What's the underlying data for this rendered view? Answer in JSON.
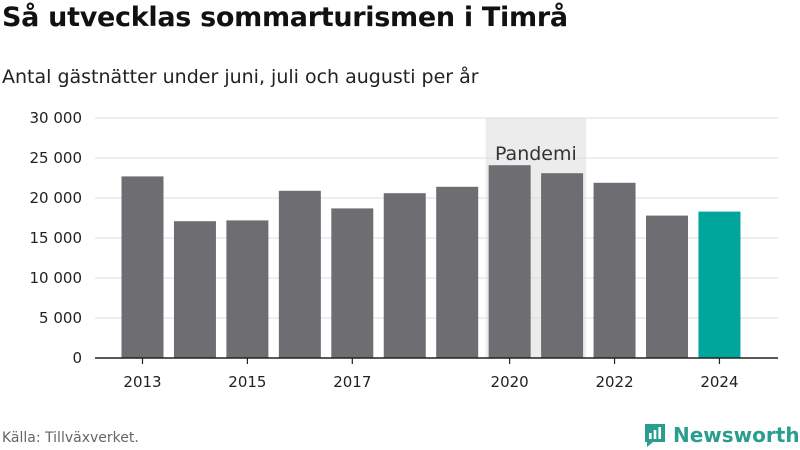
{
  "header": {
    "title": "Så utvecklas sommarturismen i Timrå",
    "subtitle": "Antal gästnätter under juni, juli och augusti per år"
  },
  "footer": {
    "source": "Källa: Tillväxverket.",
    "brand": "Newsworthy",
    "brand_icon": "newsworthy-logo-icon"
  },
  "colors": {
    "bar": "#6e6d71",
    "highlight": "#00a59b",
    "shade": "#ececec",
    "grid": "#dcdcdc",
    "brand": "#2a9d8f"
  },
  "chart_data": {
    "type": "bar",
    "categories": [
      "2013",
      "2014",
      "2015",
      "2016",
      "2017",
      "2018",
      "2019",
      "2020",
      "2021",
      "2022",
      "2023",
      "2024"
    ],
    "values": [
      22700,
      17100,
      17200,
      20900,
      18700,
      20600,
      21400,
      24100,
      23100,
      21900,
      17800,
      18300
    ],
    "highlight_category": "2024",
    "x_tick_labels": [
      "2013",
      "2015",
      "2017",
      "2020",
      "2022",
      "2024"
    ],
    "y_ticks": [
      0,
      5000,
      10000,
      15000,
      20000,
      25000,
      30000
    ],
    "y_tick_labels": [
      "0",
      "5 000",
      "10 000",
      "15 000",
      "20 000",
      "25 000",
      "30 000"
    ],
    "ylim": [
      0,
      30000
    ],
    "annotation": {
      "label": "Pandemi",
      "from": "2020",
      "to": "2021"
    },
    "grid": true,
    "legend": false
  }
}
